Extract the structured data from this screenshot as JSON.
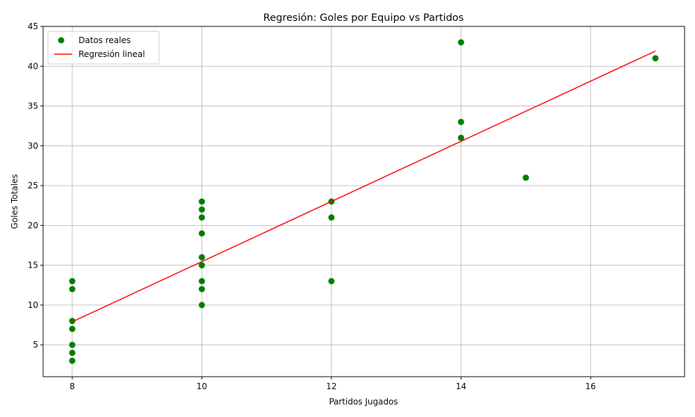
{
  "chart_data": {
    "type": "scatter",
    "title": "Regresión: Goles por Equipo vs Partidos",
    "xlabel": "Partidos Jugados",
    "ylabel": "Goles Totales",
    "xlim": [
      7.55,
      17.45
    ],
    "ylim": [
      1,
      45
    ],
    "xticks": [
      8,
      10,
      12,
      14,
      16
    ],
    "yticks": [
      5,
      10,
      15,
      20,
      25,
      30,
      35,
      40,
      45
    ],
    "grid": true,
    "legend_position": "upper-left",
    "series": [
      {
        "name": "Datos reales",
        "kind": "scatter",
        "color": "#008000",
        "points": [
          [
            8,
            3
          ],
          [
            8,
            4
          ],
          [
            8,
            5
          ],
          [
            8,
            7
          ],
          [
            8,
            8
          ],
          [
            8,
            12
          ],
          [
            8,
            13
          ],
          [
            10,
            10
          ],
          [
            10,
            12
          ],
          [
            10,
            13
          ],
          [
            10,
            15
          ],
          [
            10,
            16
          ],
          [
            10,
            19
          ],
          [
            10,
            21
          ],
          [
            10,
            22
          ],
          [
            10,
            23
          ],
          [
            12,
            13
          ],
          [
            12,
            21
          ],
          [
            12,
            23
          ],
          [
            14,
            31
          ],
          [
            14,
            33
          ],
          [
            14,
            43
          ],
          [
            15,
            26
          ],
          [
            17,
            41
          ]
        ]
      },
      {
        "name": "Regresión lineal",
        "kind": "line",
        "color": "#ff0000",
        "points": [
          [
            8,
            7.9
          ],
          [
            17,
            41.9
          ]
        ]
      }
    ]
  }
}
